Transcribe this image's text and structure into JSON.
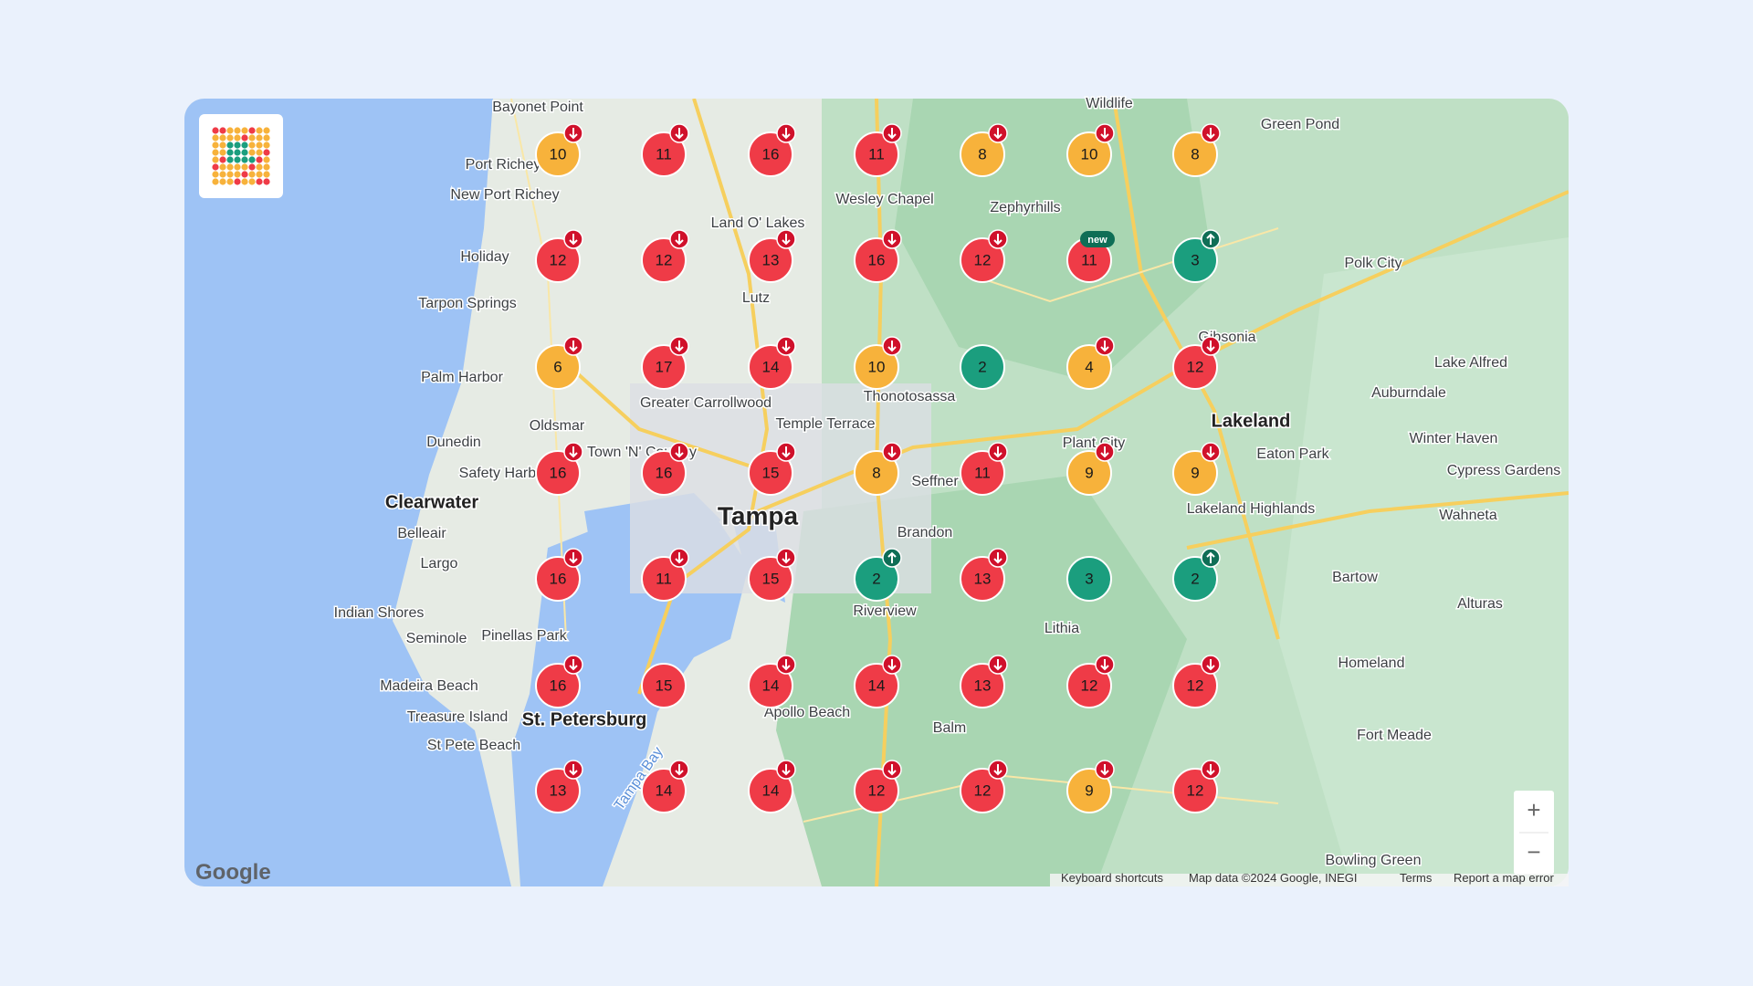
{
  "logo": "grid",
  "map": {
    "markers": [
      [
        {
          "rank": 10,
          "color": "#f7b23b",
          "trend": "down"
        },
        {
          "rank": 11,
          "color": "#ef3b47",
          "trend": "down"
        },
        {
          "rank": 16,
          "color": "#ef3b47",
          "trend": "down"
        },
        {
          "rank": 11,
          "color": "#ef3b47",
          "trend": "down"
        },
        {
          "rank": 8,
          "color": "#f7b23b",
          "trend": "down"
        },
        {
          "rank": 10,
          "color": "#f7b23b",
          "trend": "down"
        },
        {
          "rank": 8,
          "color": "#f7b23b",
          "trend": "down"
        }
      ],
      [
        {
          "rank": 12,
          "color": "#ef3b47",
          "trend": "down"
        },
        {
          "rank": 12,
          "color": "#ef3b47",
          "trend": "down"
        },
        {
          "rank": 13,
          "color": "#ef3b47",
          "trend": "down"
        },
        {
          "rank": 16,
          "color": "#ef3b47",
          "trend": "down"
        },
        {
          "rank": 12,
          "color": "#ef3b47",
          "trend": "down"
        },
        {
          "rank": 11,
          "color": "#ef3b47",
          "tag": "new"
        },
        {
          "rank": 3,
          "color": "#1b9e7e",
          "trend": "up"
        }
      ],
      [
        {
          "rank": 6,
          "color": "#f7b23b",
          "trend": "down"
        },
        {
          "rank": 17,
          "color": "#ef3b47",
          "trend": "down"
        },
        {
          "rank": 14,
          "color": "#ef3b47",
          "trend": "down"
        },
        {
          "rank": 10,
          "color": "#f7b23b",
          "trend": "down"
        },
        {
          "rank": 2,
          "color": "#1b9e7e"
        },
        {
          "rank": 4,
          "color": "#f7b23b",
          "trend": "down"
        },
        {
          "rank": 12,
          "color": "#ef3b47",
          "trend": "down"
        }
      ],
      [
        {
          "rank": 16,
          "color": "#ef3b47",
          "trend": "down"
        },
        {
          "rank": 16,
          "color": "#ef3b47",
          "trend": "down"
        },
        {
          "rank": 15,
          "color": "#ef3b47",
          "trend": "down"
        },
        {
          "rank": 8,
          "color": "#f7b23b",
          "trend": "down"
        },
        {
          "rank": 11,
          "color": "#ef3b47",
          "trend": "down"
        },
        {
          "rank": 9,
          "color": "#f7b23b",
          "trend": "down"
        },
        {
          "rank": 9,
          "color": "#f7b23b",
          "trend": "down"
        }
      ],
      [
        {
          "rank": 16,
          "color": "#ef3b47",
          "trend": "down"
        },
        {
          "rank": 11,
          "color": "#ef3b47",
          "trend": "down"
        },
        {
          "rank": 15,
          "color": "#ef3b47",
          "trend": "down"
        },
        {
          "rank": 2,
          "color": "#1b9e7e",
          "trend": "up"
        },
        {
          "rank": 13,
          "color": "#ef3b47",
          "trend": "down"
        },
        {
          "rank": 3,
          "color": "#1b9e7e"
        },
        {
          "rank": 2,
          "color": "#1b9e7e",
          "trend": "up"
        }
      ],
      [
        {
          "rank": 16,
          "color": "#ef3b47",
          "trend": "down"
        },
        {
          "rank": 15,
          "color": "#ef3b47"
        },
        {
          "rank": 14,
          "color": "#ef3b47",
          "trend": "down"
        },
        {
          "rank": 14,
          "color": "#ef3b47",
          "trend": "down"
        },
        {
          "rank": 13,
          "color": "#ef3b47",
          "trend": "down"
        },
        {
          "rank": 12,
          "color": "#ef3b47",
          "trend": "down"
        },
        {
          "rank": 12,
          "color": "#ef3b47",
          "trend": "down"
        }
      ],
      [
        {
          "rank": 13,
          "color": "#ef3b47",
          "trend": "down"
        },
        {
          "rank": 14,
          "color": "#ef3b47",
          "trend": "down"
        },
        {
          "rank": 14,
          "color": "#ef3b47",
          "trend": "down"
        },
        {
          "rank": 12,
          "color": "#ef3b47",
          "trend": "down"
        },
        {
          "rank": 12,
          "color": "#ef3b47",
          "trend": "down"
        },
        {
          "rank": 9,
          "color": "#f7b23b",
          "trend": "down"
        },
        {
          "rank": 12,
          "color": "#ef3b47",
          "trend": "down"
        }
      ]
    ],
    "places": [
      "Bayonet Point",
      "Port Richey",
      "New Port Richey",
      "Holiday",
      "Tarpon Springs",
      "Palm Harbor",
      "Dunedin",
      "Clearwater",
      "Belleair",
      "Largo",
      "Indian Shores",
      "Seminole",
      "Pinellas Park",
      "Madeira Beach",
      "Treasure Island",
      "St. Petersburg",
      "St Pete Beach",
      "Land O' Lakes",
      "Lutz",
      "Wesley Chapel",
      "Zephyrhills",
      "Green Pond",
      "Polk City",
      "Greater Carrollwood",
      "Temple Terrace",
      "Thonotosassa",
      "Oldsmar",
      "Town 'N' Country",
      "Safety Harbor",
      "Tampa",
      "Seffner",
      "Plant City",
      "Lakeland",
      "Eaton Park",
      "Lake Alfred",
      "Auburndale",
      "Winter Haven",
      "Cypress Gardens",
      "Lakeland Highlands",
      "Wahneta",
      "Brandon",
      "Riverview",
      "Lithia",
      "Bartow",
      "Alturas",
      "Homeland",
      "Fort Meade",
      "Apollo Beach",
      "Balm",
      "Bowling Green",
      "Gibsonia",
      "Wildlife",
      "Tampa Bay"
    ],
    "zoom_in": "+",
    "zoom_out": "−",
    "attribution_logo": "Google",
    "footer": [
      "Keyboard shortcuts",
      "Map data ©2024 Google, INEGI",
      "Terms",
      "Report a map error"
    ]
  }
}
